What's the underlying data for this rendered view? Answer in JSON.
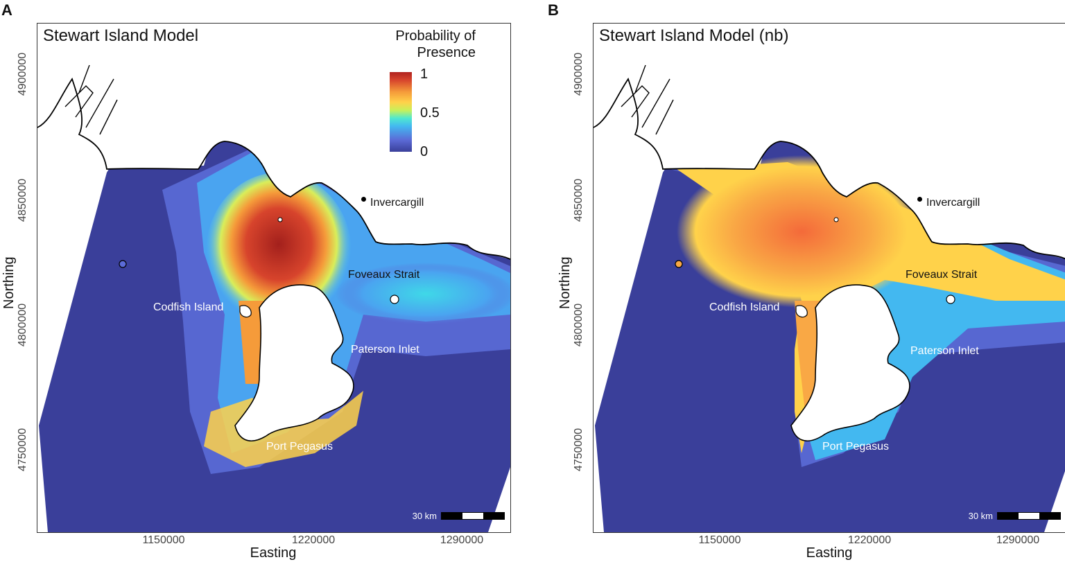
{
  "panels": [
    {
      "letter": "A",
      "title": "Stewart Island Model"
    },
    {
      "letter": "B",
      "title": "Stewart Island Model (nb)"
    }
  ],
  "legend": {
    "title_line1": "Probability of",
    "title_line2": "Presence",
    "labels": [
      "1",
      "0.5",
      "0"
    ],
    "colors": {
      "low": "#3a3f9a",
      "mid": "#c8f05a",
      "high": "#b0221e"
    }
  },
  "axes": {
    "xlabel": "Easting",
    "ylabel": "Northing",
    "xticks": [
      "1150000",
      "1220000",
      "1290000"
    ],
    "yticks": [
      "4900000",
      "4850000",
      "4800000",
      "4750000"
    ]
  },
  "places": {
    "invercargill": "Invercargill",
    "foveaux": "Foveaux Strait",
    "codfish": "Codfish Island",
    "paterson": "Paterson Inlet",
    "pegasus": "Port Pegasus"
  },
  "scalebar": {
    "label": "30 km"
  }
}
